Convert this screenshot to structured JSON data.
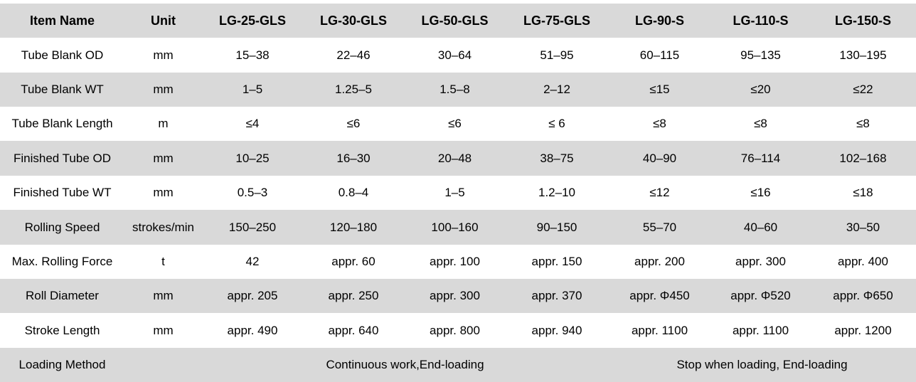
{
  "table": {
    "header": [
      "Item Name",
      "Unit",
      "LG-25-GLS",
      "LG-30-GLS",
      "LG-50-GLS",
      "LG-75-GLS",
      "LG-90-S",
      "LG-110-S",
      "LG-150-S"
    ],
    "rows": [
      {
        "item": "Tube Blank OD",
        "unit": "mm",
        "values": [
          "15–38",
          "22–46",
          "30–64",
          "51–95",
          "60–115",
          "95–135",
          "130–195"
        ]
      },
      {
        "item": "Tube Blank WT",
        "unit": "mm",
        "values": [
          "1–5",
          "1.25–5",
          "1.5–8",
          "2–12",
          "≤15",
          "≤20",
          "≤22"
        ]
      },
      {
        "item": "Tube Blank Length",
        "unit": "m",
        "values": [
          "≤4",
          "≤6",
          "≤6",
          "≤ 6",
          "≤8",
          "≤8",
          "≤8"
        ]
      },
      {
        "item": "Finished Tube OD",
        "unit": "mm",
        "values": [
          "10–25",
          "16–30",
          "20–48",
          "38–75",
          "40–90",
          "76–114",
          "102–168"
        ]
      },
      {
        "item": "Finished Tube WT",
        "unit": "mm",
        "values": [
          "0.5–3",
          "0.8–4",
          "1–5",
          "1.2–10",
          "≤12",
          "≤16",
          "≤18"
        ]
      },
      {
        "item": "Rolling Speed",
        "unit": "strokes/min",
        "values": [
          "150–250",
          "120–180",
          "100–160",
          "90–150",
          "55–70",
          "40–60",
          "30–50"
        ]
      },
      {
        "item": "Max. Rolling Force",
        "unit": "t",
        "values": [
          "42",
          "appr. 60",
          "appr. 100",
          "appr. 150",
          "appr. 200",
          "appr. 300",
          "appr. 400"
        ]
      },
      {
        "item": "Roll Diameter",
        "unit": "mm",
        "values": [
          "appr. 205",
          "appr. 250",
          "appr. 300",
          "appr. 370",
          "appr. Φ450",
          "appr. Φ520",
          "appr. Φ650"
        ]
      },
      {
        "item": "Stroke Length",
        "unit": "mm",
        "values": [
          "appr. 490",
          "appr. 640",
          "appr. 800",
          "appr. 940",
          "appr. 1100",
          "appr. 1100",
          "appr. 1200"
        ]
      }
    ],
    "loading_method": {
      "label": "Loading Method",
      "unit": "",
      "gls_models": "Continuous work,End-loading",
      "s_models": "Stop when loading, End-loading"
    }
  },
  "colors": {
    "row_shading": "#d9d9d9",
    "background": "#ffffff",
    "text": "#000000"
  }
}
